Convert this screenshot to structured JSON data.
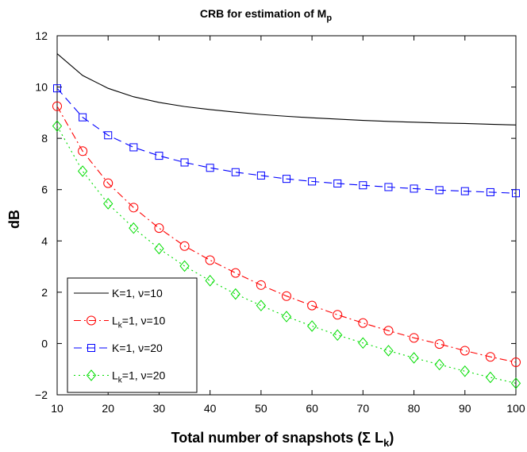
{
  "chart_data": {
    "type": "line",
    "title": "CRB for estimation of M",
    "title_subscript": "p",
    "xlabel": "Total number of snapshots (Σ L",
    "xlabel_subscript": "k",
    "xlabel_suffix": ")",
    "ylabel": "dB",
    "xlim": [
      10,
      100
    ],
    "ylim": [
      -2,
      12
    ],
    "xticks": [
      10,
      20,
      30,
      40,
      50,
      60,
      70,
      80,
      90,
      100
    ],
    "yticks": [
      -2,
      0,
      2,
      4,
      6,
      8,
      10,
      12
    ],
    "grid": false,
    "legend_position": "lower-left",
    "x": [
      10,
      15,
      20,
      25,
      30,
      35,
      40,
      45,
      50,
      55,
      60,
      65,
      70,
      75,
      80,
      85,
      90,
      95,
      100
    ],
    "series": [
      {
        "name": "K=1, ν=10",
        "label_main": "K=1, ν=10",
        "label_sub": "",
        "label_rest": "",
        "color": "#000000",
        "dash": "",
        "marker": "none",
        "values": [
          11.3,
          10.45,
          9.95,
          9.62,
          9.4,
          9.24,
          9.12,
          9.02,
          8.93,
          8.86,
          8.8,
          8.75,
          8.7,
          8.66,
          8.63,
          8.6,
          8.58,
          8.55,
          8.52
        ]
      },
      {
        "name": "L1=1, ν=10",
        "label_main": "L",
        "label_sub": "k",
        "label_rest": "=1, ν=10",
        "color": "#ff0000",
        "dash": "9,4,2,4",
        "marker": "circle",
        "values": [
          9.25,
          7.5,
          6.25,
          5.3,
          4.5,
          3.8,
          3.25,
          2.75,
          2.28,
          1.85,
          1.48,
          1.12,
          0.8,
          0.5,
          0.22,
          -0.02,
          -0.28,
          -0.52,
          -0.73
        ]
      },
      {
        "name": "K=1, ν=20",
        "label_main": "K=1, ν=20",
        "label_sub": "",
        "label_rest": "",
        "color": "#0000ff",
        "dash": "10,6",
        "marker": "square",
        "values": [
          9.95,
          8.82,
          8.12,
          7.65,
          7.32,
          7.06,
          6.85,
          6.68,
          6.55,
          6.42,
          6.32,
          6.24,
          6.17,
          6.1,
          6.04,
          5.98,
          5.94,
          5.9,
          5.86
        ]
      },
      {
        "name": "Lk=1, ν=20",
        "label_main": "L",
        "label_sub": "k",
        "label_rest": "=1, ν=20",
        "color": "#00dd00",
        "dash": "2,4",
        "marker": "diamond",
        "values": [
          8.48,
          6.72,
          5.45,
          4.5,
          3.7,
          3.02,
          2.45,
          1.93,
          1.48,
          1.05,
          0.68,
          0.33,
          0.02,
          -0.28,
          -0.56,
          -0.82,
          -1.08,
          -1.32,
          -1.55
        ]
      }
    ]
  }
}
